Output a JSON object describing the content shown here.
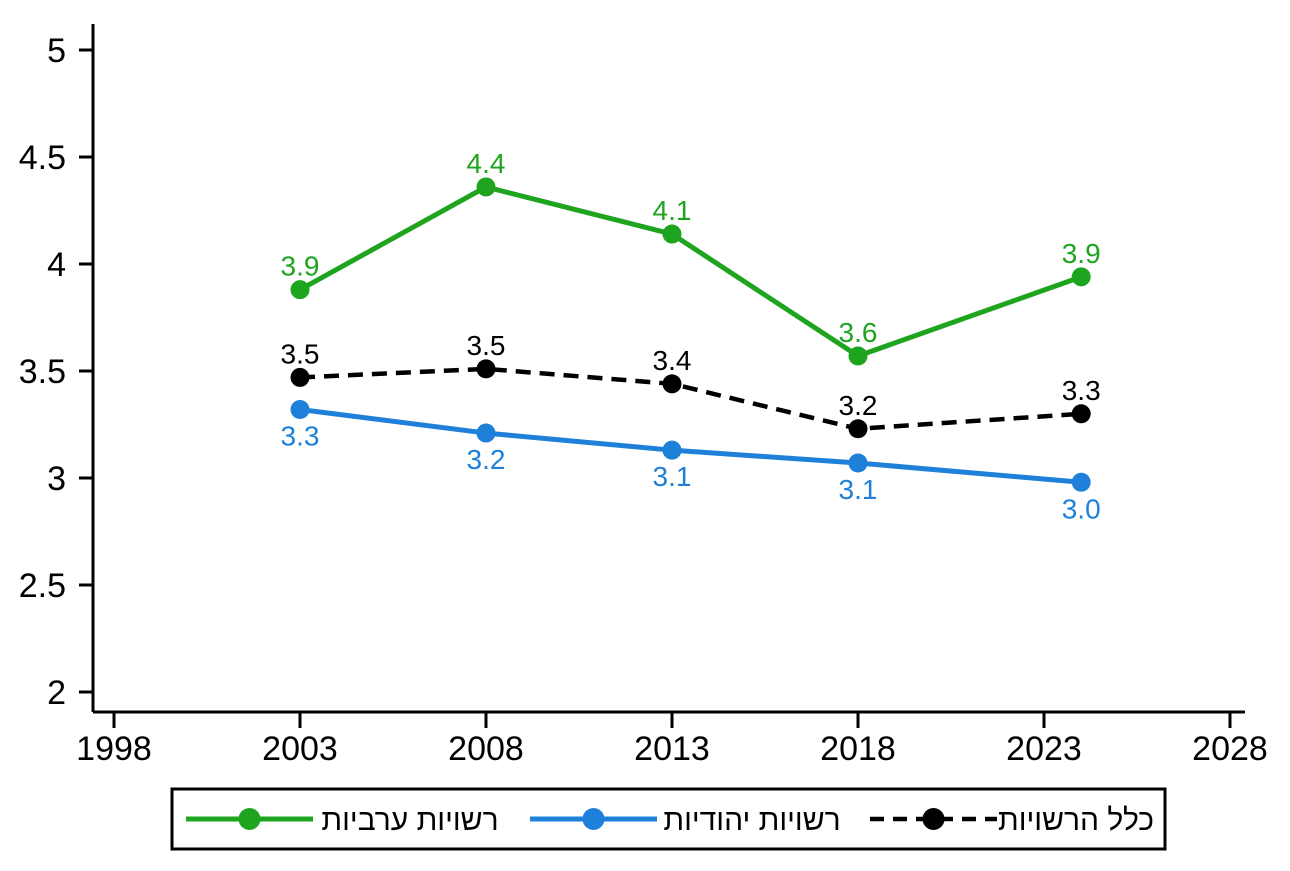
{
  "figure": {
    "background": "#ffffff",
    "axis_color": "#000000",
    "legend_border_color": "#000000"
  },
  "chart_data": {
    "type": "line",
    "title": "",
    "xlabel": "",
    "ylabel": "",
    "grid": false,
    "legend_position": "bottom",
    "x": [
      2003,
      2008,
      2013,
      2018,
      2024
    ],
    "x_axis": {
      "ticks": [
        1998,
        2003,
        2008,
        2013,
        2018,
        2023,
        2028
      ],
      "tick_labels": [
        "1998",
        "2003",
        "2008",
        "2013",
        "2018",
        "2023",
        "2028"
      ],
      "range": [
        1998,
        2028
      ]
    },
    "y_axis": {
      "ticks": [
        5,
        4.5,
        4,
        3.5,
        3,
        2.5,
        2
      ],
      "tick_labels": [
        "5",
        "4.5",
        "4",
        "3.5",
        "3",
        "2.5",
        "2"
      ],
      "range": [
        2,
        5
      ]
    },
    "series": [
      {
        "name": "רשויות ערביות",
        "color": "#1FA41F",
        "line_style": "solid",
        "marker": "circle",
        "values": [
          3.88,
          4.36,
          4.14,
          3.57,
          3.94
        ],
        "point_labels": [
          "3.9",
          "4.4",
          "4.1",
          "3.6",
          "3.9"
        ],
        "point_label_side": "above"
      },
      {
        "name": "רשויות יהודיות",
        "color": "#1E80D8",
        "line_style": "solid",
        "marker": "circle",
        "values": [
          3.32,
          3.21,
          3.13,
          3.07,
          2.98
        ],
        "point_labels": [
          "3.3",
          "3.2",
          "3.1",
          "3.1",
          "3.0"
        ],
        "point_label_side": "below"
      },
      {
        "name": "כלל הרשויות",
        "color": "#000000",
        "line_style": "dashed",
        "marker": "circle",
        "values": [
          3.47,
          3.51,
          3.44,
          3.23,
          3.3
        ],
        "point_labels": [
          "3.5",
          "3.5",
          "3.4",
          "3.2",
          "3.3"
        ],
        "point_label_side": "above"
      }
    ]
  }
}
